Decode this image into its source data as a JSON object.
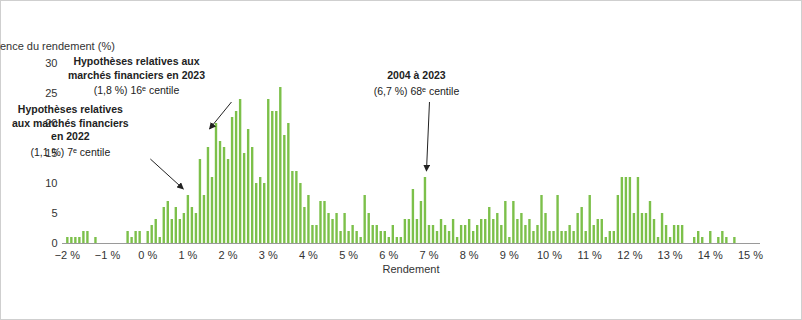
{
  "chart_data": {
    "type": "bar",
    "y_label": "Fréquence du rendement (%)",
    "x_label": "Rendement",
    "color": "#7cc04a",
    "grid": false,
    "xlim": [
      -2.12,
      15.25
    ],
    "ylim": [
      0,
      30
    ],
    "yticks": [
      0,
      5,
      10,
      15,
      20,
      25,
      30
    ],
    "xticks": [
      {
        "value": -2,
        "label": "−2 %"
      },
      {
        "value": -1,
        "label": "−1 %"
      },
      {
        "value": 0,
        "label": "0 %"
      },
      {
        "value": 1,
        "label": "1 %"
      },
      {
        "value": 2,
        "label": "2 %"
      },
      {
        "value": 3,
        "label": "3 %"
      },
      {
        "value": 4,
        "label": "4 %"
      },
      {
        "value": 5,
        "label": "5 %"
      },
      {
        "value": 6,
        "label": "6 %"
      },
      {
        "value": 7,
        "label": "7 %"
      },
      {
        "value": 8,
        "label": "8 %"
      },
      {
        "value": 9,
        "label": "9 %"
      },
      {
        "value": 10,
        "label": "10 %"
      },
      {
        "value": 11,
        "label": "11 %"
      },
      {
        "value": 12,
        "label": "12 %"
      },
      {
        "value": 13,
        "label": "13 %"
      },
      {
        "value": 14,
        "label": "14 %"
      },
      {
        "value": 15,
        "label": "15 %"
      }
    ],
    "x": [
      -2,
      -1.9,
      -1.8,
      -1.7,
      -1.6,
      -1.5,
      -1.3,
      -0.5,
      -0.4,
      -0.3,
      -0.2,
      0,
      0.1,
      0.2,
      0.3,
      0.4,
      0.5,
      0.6,
      0.7,
      0.8,
      0.9,
      1,
      1.1,
      1.2,
      1.3,
      1.4,
      1.5,
      1.6,
      1.7,
      1.8,
      1.9,
      2,
      2.1,
      2.2,
      2.3,
      2.4,
      2.5,
      2.6,
      2.7,
      2.8,
      2.9,
      3,
      3.1,
      3.2,
      3.3,
      3.4,
      3.5,
      3.6,
      3.7,
      3.8,
      3.9,
      4,
      4.1,
      4.2,
      4.3,
      4.4,
      4.5,
      4.6,
      4.7,
      4.8,
      4.9,
      5,
      5.1,
      5.2,
      5.3,
      5.4,
      5.5,
      5.6,
      5.7,
      5.8,
      5.9,
      6,
      6.1,
      6.2,
      6.3,
      6.4,
      6.5,
      6.6,
      6.7,
      6.8,
      6.9,
      7,
      7.1,
      7.2,
      7.3,
      7.4,
      7.5,
      7.6,
      7.7,
      7.8,
      7.9,
      8,
      8.1,
      8.2,
      8.3,
      8.4,
      8.5,
      8.6,
      8.7,
      8.8,
      8.9,
      9,
      9.1,
      9.2,
      9.3,
      9.4,
      9.5,
      9.6,
      9.7,
      9.8,
      9.9,
      10,
      10.1,
      10.2,
      10.3,
      10.4,
      10.5,
      10.6,
      10.7,
      10.8,
      10.9,
      11,
      11.1,
      11.2,
      11.3,
      11.4,
      11.5,
      11.6,
      11.7,
      11.8,
      11.9,
      12,
      12.1,
      12.2,
      12.3,
      12.4,
      12.5,
      12.6,
      12.7,
      12.8,
      12.9,
      13,
      13.1,
      13.2,
      13.3,
      13.6,
      13.7,
      13.8,
      14,
      14.2,
      14.3,
      14.4,
      14.6
    ],
    "values": [
      1,
      1,
      1,
      1,
      2,
      2,
      1,
      2,
      1,
      2,
      2,
      2,
      3,
      4,
      1,
      6,
      7,
      4,
      6,
      4,
      5,
      8,
      6,
      5,
      14,
      8,
      16,
      11,
      20,
      17,
      16,
      14,
      21,
      22,
      24,
      15,
      19,
      16,
      10,
      11,
      10,
      24,
      22,
      22,
      26,
      18,
      20,
      12,
      12,
      10,
      6,
      8,
      3,
      3,
      7,
      7,
      5,
      4,
      5,
      2,
      5,
      2,
      3,
      2,
      1,
      8,
      5,
      3,
      3,
      2,
      2,
      1,
      3,
      1,
      1,
      4,
      4,
      9,
      4,
      7,
      11,
      3,
      3,
      2,
      4,
      3,
      2,
      4,
      1,
      3,
      3,
      4,
      2,
      3,
      4,
      4,
      6,
      4,
      5,
      3,
      7,
      1,
      7,
      4,
      5,
      3,
      4,
      2,
      3,
      8,
      5,
      2,
      2,
      8,
      2,
      2,
      3,
      2,
      5,
      6,
      2,
      8,
      3,
      4,
      4,
      1,
      2,
      2,
      8,
      11,
      11,
      11,
      5,
      11,
      5,
      5,
      7,
      4,
      1,
      5,
      3,
      1,
      3,
      3,
      3,
      1,
      2,
      1,
      2,
      1,
      2,
      1,
      1
    ],
    "annotations": [
      {
        "title": [
          "Hypothèses relatives",
          "aux marchés financiers",
          "en 2022"
        ],
        "detail": "(1,1 %) 7ᵉ centile",
        "x": 0.9,
        "y": 9
      },
      {
        "title": [
          "Hypothèses relatives aux",
          "marchés financiers en 2023"
        ],
        "detail": "(1,8 %) 16ᵉ centile",
        "x": 1.55,
        "y": 19
      },
      {
        "title": [
          "2004 à 2023"
        ],
        "detail": "(6,7 %) 68ᵉ centile",
        "x": 6.95,
        "y": 12
      }
    ]
  }
}
